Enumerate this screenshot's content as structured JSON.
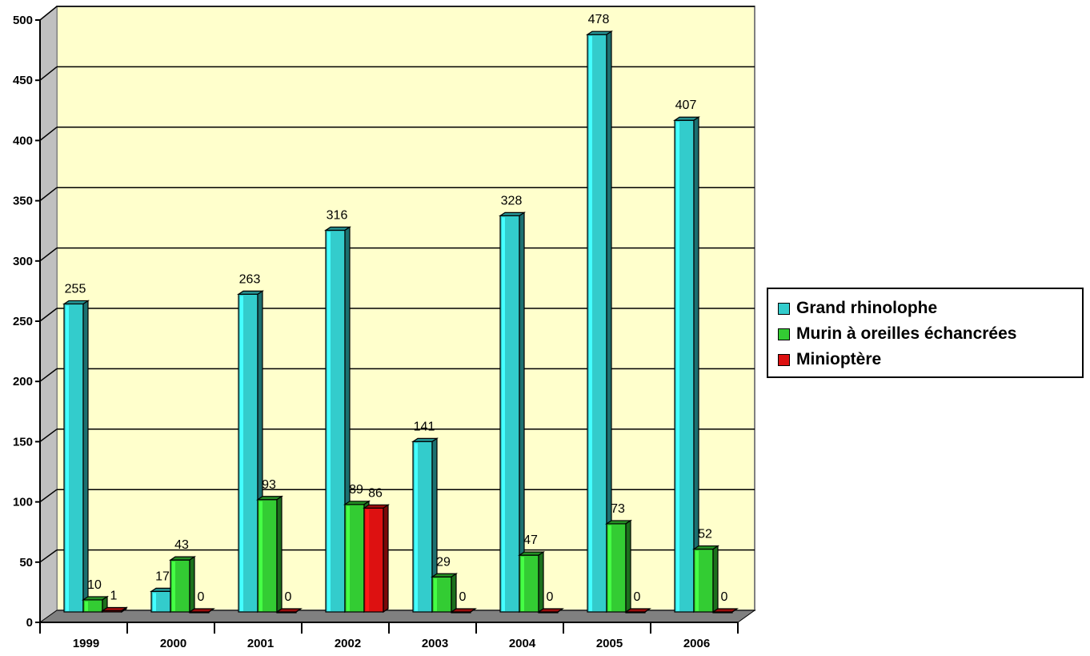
{
  "chart_data": {
    "type": "bar",
    "categories": [
      "1999",
      "2000",
      "2001",
      "2002",
      "2003",
      "2004",
      "2005",
      "2006"
    ],
    "series": [
      {
        "name": "Grand rhinolophe",
        "color": "#33CCCC",
        "values": [
          255,
          17,
          263,
          316,
          141,
          328,
          478,
          407
        ]
      },
      {
        "name": "Murin à oreilles échancrées",
        "color": "#33CC33",
        "values": [
          10,
          43,
          93,
          89,
          29,
          47,
          73,
          52
        ]
      },
      {
        "name": "Minioptère",
        "color": "#DD1111",
        "values": [
          1,
          0,
          0,
          86,
          0,
          0,
          0,
          0
        ]
      }
    ],
    "data_labels": [
      [
        "255",
        "10",
        "1"
      ],
      [
        "17",
        "43",
        "0"
      ],
      [
        "263",
        "93",
        "0"
      ],
      [
        "316",
        "89",
        "86"
      ],
      [
        "141",
        "29",
        "0"
      ],
      [
        "328",
        "47",
        "0"
      ],
      [
        "478",
        "73",
        "0"
      ],
      [
        "407",
        "52",
        "0"
      ]
    ],
    "y_ticks": [
      "0",
      "50",
      "100",
      "150",
      "200",
      "250",
      "300",
      "350",
      "400",
      "450",
      "500"
    ],
    "ylim": [
      0,
      500
    ],
    "grid": true,
    "legend_position": "right",
    "plot_background": "#FFFFCC",
    "title": "",
    "xlabel": "",
    "ylabel": ""
  }
}
